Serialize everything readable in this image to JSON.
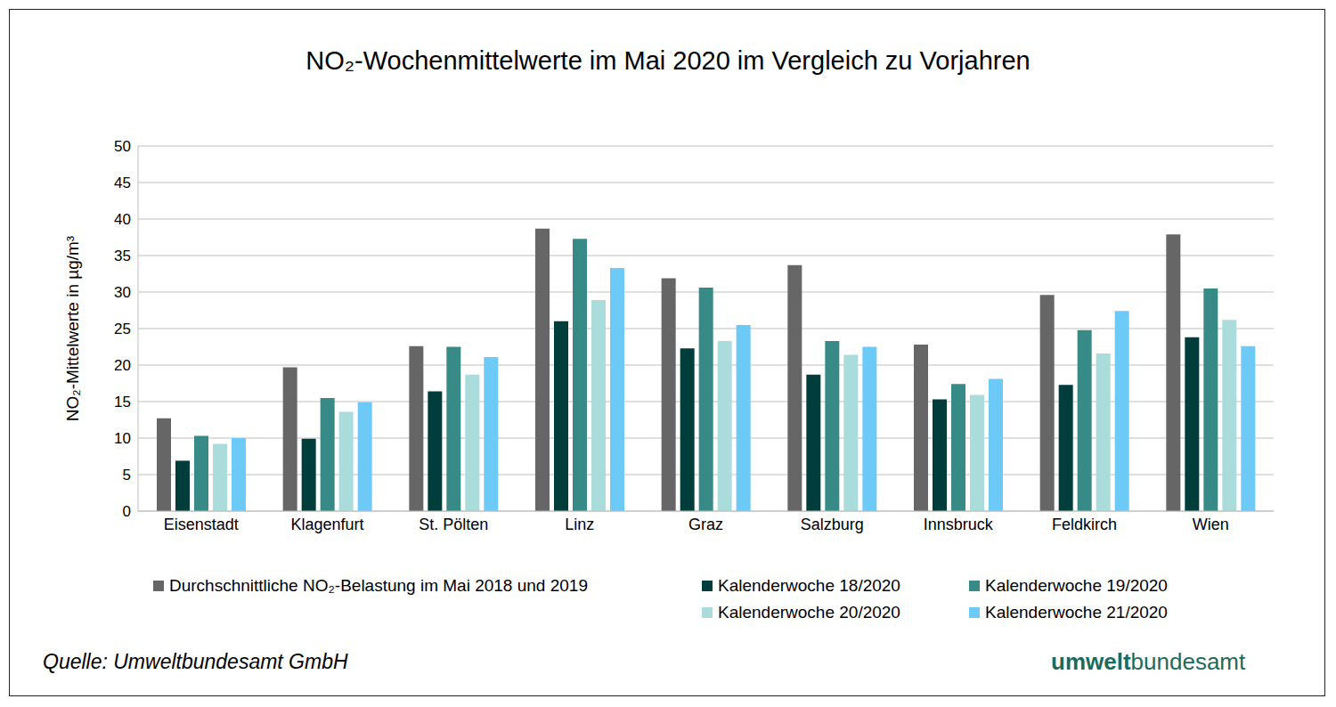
{
  "chart_data": {
    "type": "bar",
    "title": "NO₂-Wochenmittelwerte im Mai 2020 im Vergleich zu Vorjahren",
    "y_label": "NO₂-Mittelwerte in µg/m³",
    "categories": [
      "Eisenstadt",
      "Klagenfurt",
      "St. Pölten",
      "Linz",
      "Graz",
      "Salzburg",
      "Innsbruck",
      "Feldkirch",
      "Wien"
    ],
    "series": [
      {
        "name": "Durchschnittliche NO₂-Belastung im Mai 2018 und 2019",
        "color": "#666666",
        "values": [
          12.7,
          19.7,
          22.6,
          38.7,
          31.9,
          33.7,
          22.8,
          29.6,
          37.9
        ]
      },
      {
        "name": "Kalenderwoche 18/2020",
        "color": "#003d3b",
        "values": [
          6.9,
          9.9,
          16.4,
          26.0,
          22.3,
          18.7,
          15.3,
          17.3,
          23.8
        ]
      },
      {
        "name": "Kalenderwoche 19/2020",
        "color": "#378a86",
        "values": [
          10.3,
          15.5,
          22.5,
          37.3,
          30.6,
          23.3,
          17.4,
          24.8,
          30.5
        ]
      },
      {
        "name": "Kalenderwoche 20/2020",
        "color": "#a9dcdb",
        "values": [
          9.2,
          13.6,
          18.7,
          28.9,
          23.3,
          21.4,
          15.9,
          21.6,
          26.2
        ]
      },
      {
        "name": "Kalenderwoche 21/2020",
        "color": "#6dcaf7",
        "values": [
          10.0,
          14.9,
          21.1,
          33.3,
          25.5,
          22.5,
          18.1,
          27.4,
          22.6
        ]
      }
    ],
    "ylim": [
      0,
      50
    ],
    "yticks": [
      0,
      5,
      10,
      15,
      20,
      25,
      30,
      35,
      40,
      45,
      50
    ],
    "grid": true,
    "legend": "bottom",
    "source": "Quelle: Umweltbundesamt GmbH",
    "logo": [
      "umwelt",
      "bundesamt"
    ]
  }
}
